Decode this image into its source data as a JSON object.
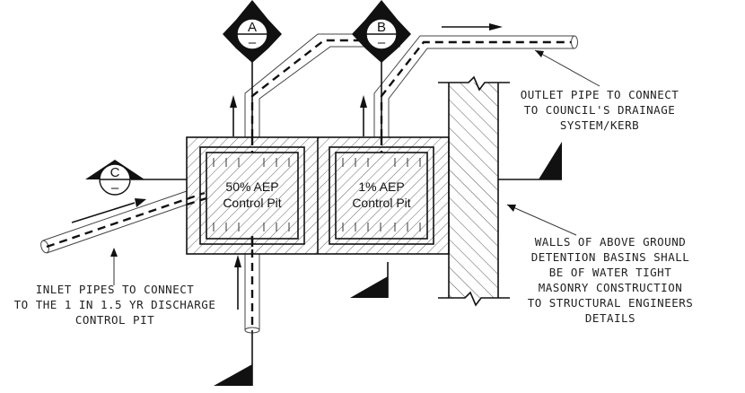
{
  "pits": {
    "left": {
      "line1": "50% AEP",
      "line2": "Control Pit"
    },
    "right": {
      "line1": "1% AEP",
      "line2": "Control Pit"
    }
  },
  "section_markers": {
    "a": {
      "letter": "A",
      "sub": "–"
    },
    "b": {
      "letter": "B",
      "sub": "–"
    },
    "c": {
      "letter": "C",
      "sub": "–"
    }
  },
  "notes": {
    "outlet": {
      "lines": [
        "OUTLET PIPE TO CONNECT",
        "TO COUNCIL'S DRAINAGE",
        "SYSTEM/KERB"
      ]
    },
    "inlet": {
      "lines": [
        "INLET PIPES TO CONNECT",
        "TO THE 1 IN 1.5 YR DISCHARGE",
        "CONTROL PIT"
      ]
    },
    "walls": {
      "lines": [
        "WALLS OF ABOVE GROUND",
        "DETENTION BASINS SHALL",
        "BE OF WATER TIGHT",
        "MASONRY CONSTRUCTION",
        "TO STRUCTURAL ENGINEERS",
        "DETAILS"
      ]
    }
  },
  "colors": {
    "ink": "#111111",
    "background": "#ffffff"
  }
}
